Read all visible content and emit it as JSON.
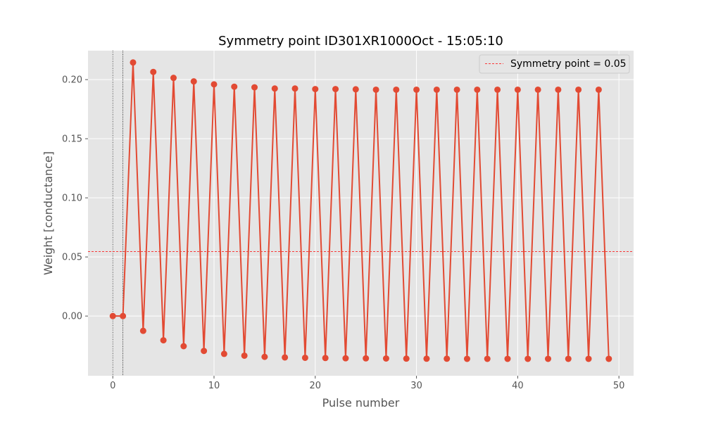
{
  "chart_data": {
    "type": "line",
    "title": "Symmetry point ID301XR1000Oct - 15:05:10",
    "xlabel": "Pulse number",
    "ylabel": "Weight [conductance]",
    "xlim": [
      -2.45,
      51.45
    ],
    "ylim": [
      -0.0505,
      0.2245
    ],
    "xticks": [
      0,
      10,
      20,
      30,
      40,
      50
    ],
    "yticks": [
      0.0,
      0.05,
      0.1,
      0.15,
      0.2
    ],
    "ytick_labels": [
      "0.00",
      "0.05",
      "0.10",
      "0.15",
      "0.20"
    ],
    "grid": true,
    "legend_position": "top-right",
    "series": [
      {
        "x": [
          0,
          1,
          2,
          3,
          4,
          5,
          6,
          7,
          8,
          9,
          10,
          11,
          12,
          13,
          14,
          15,
          16,
          17,
          18,
          19,
          20,
          21,
          22,
          23,
          24,
          25,
          26,
          27,
          28,
          29,
          30,
          31,
          32,
          33,
          34,
          35,
          36,
          37,
          38,
          39,
          40,
          41,
          42,
          43,
          44,
          45,
          46,
          47,
          48,
          49
        ],
        "values": [
          0.0,
          0.0,
          0.2145,
          -0.0125,
          0.2065,
          -0.0205,
          0.2015,
          -0.0255,
          0.1985,
          -0.0295,
          0.196,
          -0.032,
          0.194,
          -0.0335,
          0.1935,
          -0.0345,
          0.1925,
          -0.035,
          0.1925,
          -0.0353,
          0.192,
          -0.0355,
          0.192,
          -0.0357,
          0.1918,
          -0.0358,
          0.1915,
          -0.0359,
          0.1915,
          -0.036,
          0.1915,
          -0.0361,
          0.1915,
          -0.0361,
          0.1915,
          -0.0362,
          0.1915,
          -0.0362,
          0.1915,
          -0.0362,
          0.1915,
          -0.0362,
          0.1915,
          -0.0362,
          0.1915,
          -0.0362,
          0.1915,
          -0.0362,
          0.1915,
          -0.0362
        ],
        "color": "#e24a33"
      }
    ],
    "symmetry_line": {
      "label": "Symmetry point = 0.05",
      "y": 0.0545,
      "color": "#ff0000"
    },
    "vertical_lines": [
      0,
      1
    ],
    "colors": {
      "axes_background": "#e5e5e5",
      "grid": "#ffffff",
      "text": "#555555"
    }
  }
}
